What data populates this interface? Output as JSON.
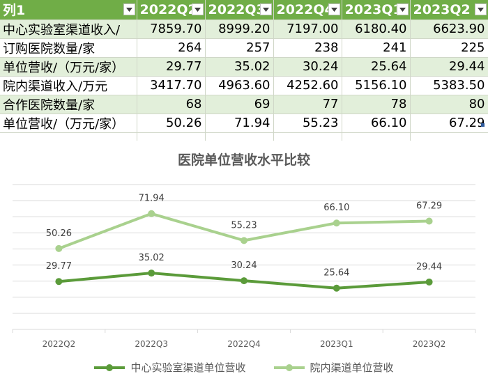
{
  "table": {
    "headers": [
      "列1",
      "2022Q2",
      "2022Q3",
      "2022Q4",
      "2023Q1",
      "2023Q2"
    ],
    "rows": [
      {
        "label": "中心实验室渠道收入/",
        "values": [
          "7859.70",
          "8999.20",
          "7197.00",
          "6180.40",
          "6623.90"
        ]
      },
      {
        "label": "订购医院数量/家",
        "values": [
          "264",
          "257",
          "238",
          "241",
          "225"
        ]
      },
      {
        "label": "单位营收/（万元/家）",
        "values": [
          "29.77",
          "35.02",
          "30.24",
          "25.64",
          "29.44"
        ]
      },
      {
        "label": "院内渠道收入/万元",
        "values": [
          "3417.70",
          "4963.60",
          "4252.60",
          "5156.10",
          "5383.50"
        ]
      },
      {
        "label": "合作医院数量/家",
        "values": [
          "68",
          "69",
          "77",
          "78",
          "80"
        ]
      },
      {
        "label": "单位营收/（万元/家）",
        "values": [
          "50.26",
          "71.94",
          "55.23",
          "66.10",
          "67.29"
        ]
      }
    ]
  },
  "chart_data": {
    "type": "line",
    "title": "医院单位营收水平比较",
    "categories": [
      "2022Q2",
      "2022Q3",
      "2022Q4",
      "2023Q1",
      "2023Q2"
    ],
    "series": [
      {
        "name": "中心实验室渠道单位营收",
        "values": [
          29.77,
          35.02,
          30.24,
          25.64,
          29.44
        ],
        "color": "#5b9b3a"
      },
      {
        "name": "院内渠道单位营收",
        "values": [
          50.26,
          71.94,
          55.23,
          66.1,
          67.29
        ],
        "color": "#a9d18e"
      }
    ],
    "ylim": [
      0,
      90
    ],
    "grid": true,
    "legend": "bottom"
  }
}
